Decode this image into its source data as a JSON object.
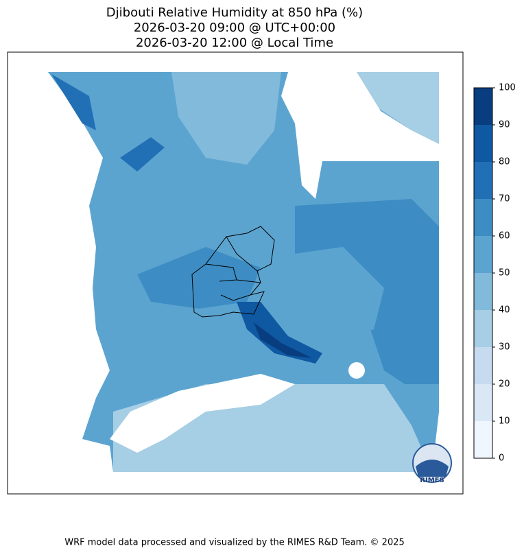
{
  "title": [
    "Djibouti Relative Humidity at 850 hPa (%)",
    "2026-03-20 09:00 @ UTC+00:00",
    "2026-03-20 12:00 @ Local Time"
  ],
  "colorbar": {
    "lim": [
      0,
      100
    ],
    "ticks": [
      0,
      10,
      20,
      30,
      40,
      50,
      60,
      70,
      80,
      90,
      100
    ],
    "colors": [
      "#f0f6fd",
      "#dae8f6",
      "#c6dbef",
      "#a6cee4",
      "#82badb",
      "#5ca4d0",
      "#3d8dc4",
      "#2170b5",
      "#0f58a2",
      "#083d7f"
    ]
  },
  "logo": "RIMES",
  "footer": "WRF model data processed and visualized by the RIMES R&D Team. © 2025"
}
